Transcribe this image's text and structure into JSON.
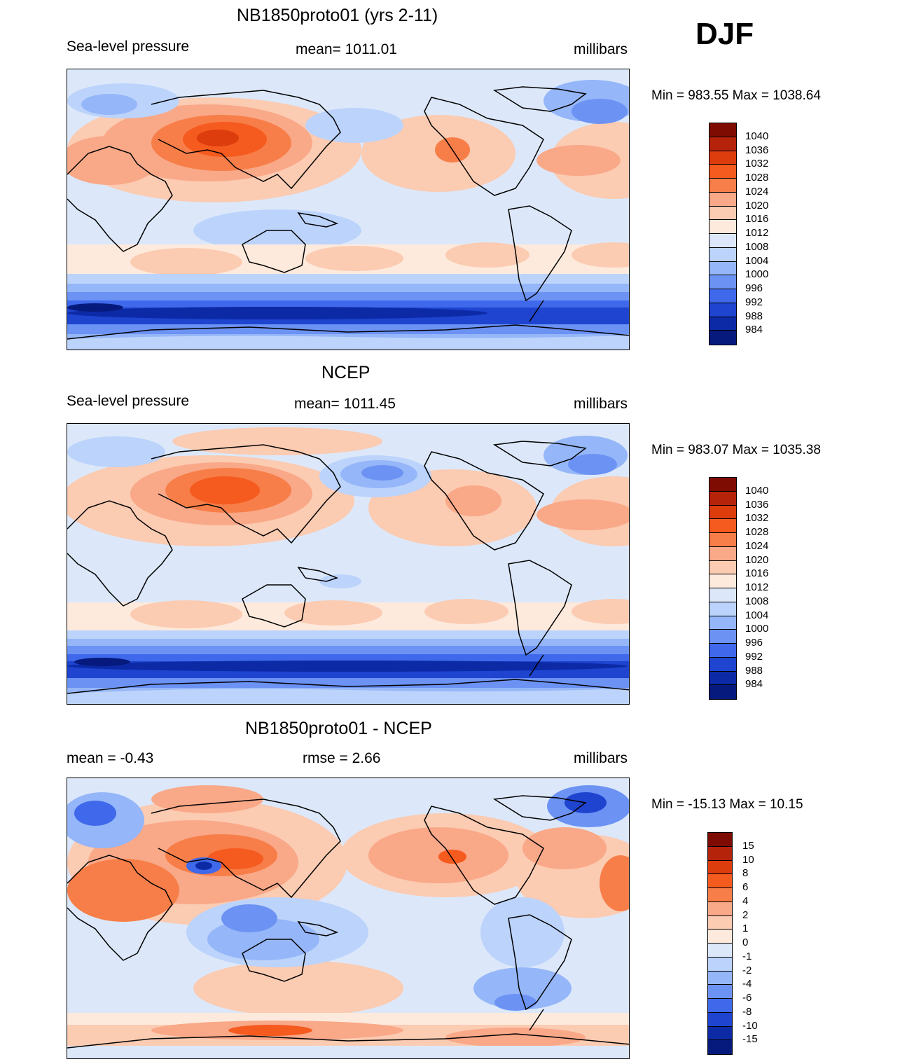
{
  "season": "DJF",
  "panels": [
    {
      "title": "NB1850proto01 (yrs 2-11)",
      "left": "Sea-level pressure",
      "center": "mean= 1011.01",
      "right": "millibars",
      "minmax": "Min = 983.55 Max = 1038.64",
      "kind": "abs"
    },
    {
      "title": "NCEP",
      "left": "Sea-level pressure",
      "center": "mean= 1011.45",
      "right": "millibars",
      "minmax": "Min = 983.07 Max = 1035.38",
      "kind": "abs"
    },
    {
      "title": "NB1850proto01 - NCEP",
      "left": "mean =  -0.43",
      "center": "rmse =   2.66",
      "right": "millibars",
      "minmax": "Min = -15.13 Max =  10.15",
      "kind": "diff"
    }
  ],
  "colorbars": {
    "abs": {
      "labels": [
        "1040",
        "1036",
        "1032",
        "1028",
        "1024",
        "1020",
        "1016",
        "1012",
        "1008",
        "1004",
        "1000",
        "996",
        "992",
        "988",
        "984"
      ],
      "colors": [
        "#7e0c02",
        "#b5230a",
        "#dd3c0c",
        "#f55a1e",
        "#f77e48",
        "#f9a888",
        "#fbcbb2",
        "#fdeadc",
        "#dce8fa",
        "#bcd3fb",
        "#95b6f8",
        "#6c92f4",
        "#3f69ea",
        "#1e44d0",
        "#0c2aa6",
        "#061a7e"
      ]
    },
    "diff": {
      "labels": [
        "15",
        "10",
        "8",
        "6",
        "4",
        "2",
        "1",
        "0",
        "-1",
        "-2",
        "-4",
        "-6",
        "-8",
        "-10",
        "-15"
      ],
      "colors": [
        "#7e0c02",
        "#b5230a",
        "#dd3c0c",
        "#f55a1e",
        "#f77e48",
        "#f9a888",
        "#fbcbb2",
        "#fdeadc",
        "#dce8fa",
        "#bcd3fb",
        "#95b6f8",
        "#6c92f4",
        "#3f69ea",
        "#1e44d0",
        "#0c2aa6",
        "#061a7e"
      ]
    }
  }
}
